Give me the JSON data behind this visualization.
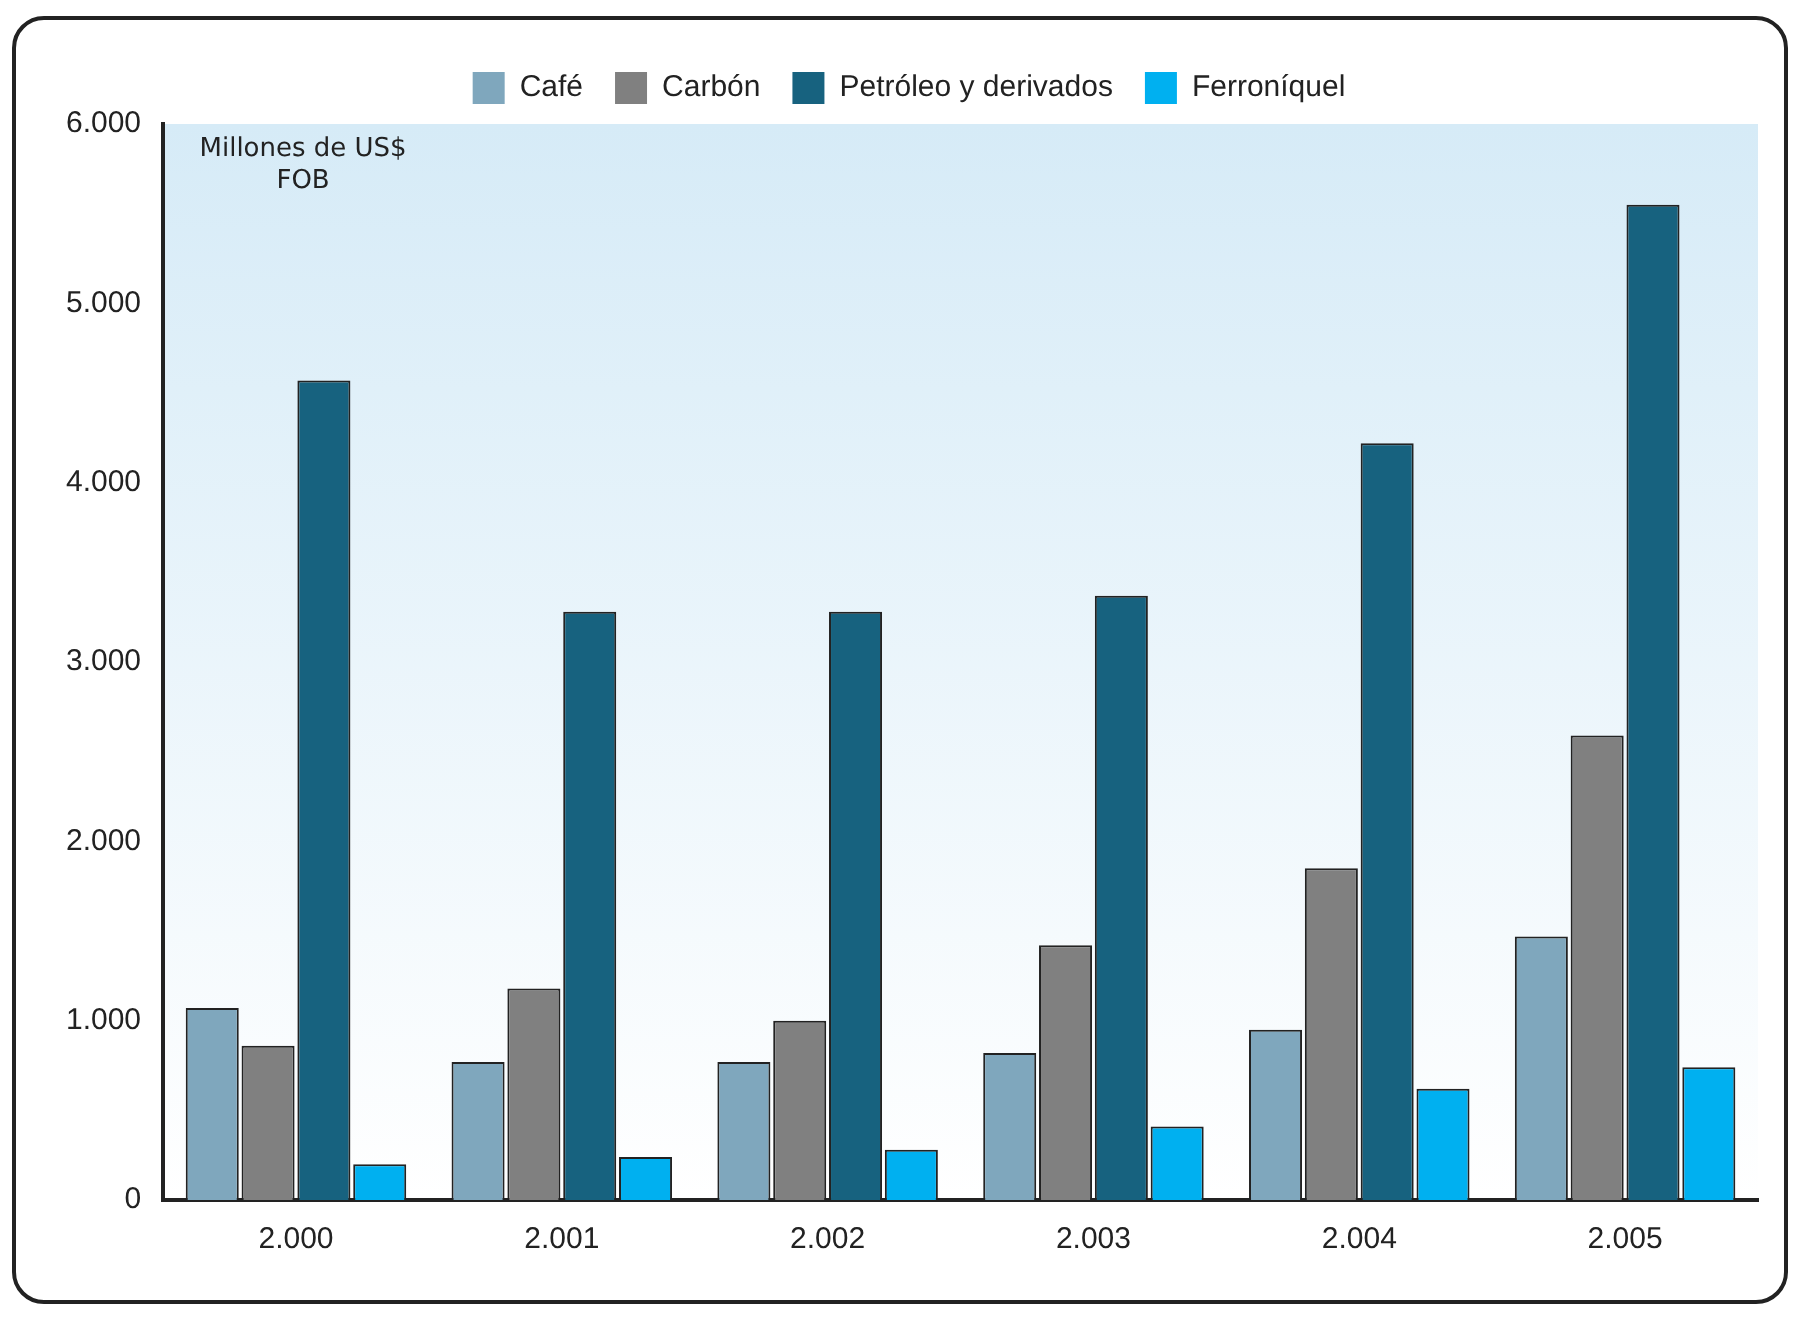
{
  "chart_data": {
    "type": "bar",
    "ylabel": "Millones de US$ FOB",
    "categories": [
      "2.000",
      "2.001",
      "2.002",
      "2.003",
      "2.004",
      "2.005"
    ],
    "series": [
      {
        "name": "Café",
        "color": "#7fa7bd",
        "values": [
          1070,
          770,
          770,
          820,
          950,
          1470
        ]
      },
      {
        "name": "Carbón",
        "color": "#808080",
        "values": [
          860,
          1180,
          1000,
          1420,
          1850,
          2590
        ]
      },
      {
        "name": "Petróleo y derivados",
        "color": "#17627f",
        "values": [
          4570,
          3280,
          3280,
          3370,
          4220,
          5550
        ]
      },
      {
        "name": "Ferroníquel",
        "color": "#00b0f0",
        "values": [
          200,
          240,
          280,
          410,
          620,
          740
        ]
      }
    ],
    "ylim": [
      0,
      6000
    ],
    "yticks": [
      {
        "value": 0,
        "label": "0"
      },
      {
        "value": 1000,
        "label": "1.000"
      },
      {
        "value": 2000,
        "label": "2.000"
      },
      {
        "value": 3000,
        "label": "3.000"
      },
      {
        "value": 4000,
        "label": "4.000"
      },
      {
        "value": 5000,
        "label": "5.000"
      },
      {
        "value": 6000,
        "label": "6.000"
      }
    ],
    "grid": false,
    "legend": "top"
  }
}
